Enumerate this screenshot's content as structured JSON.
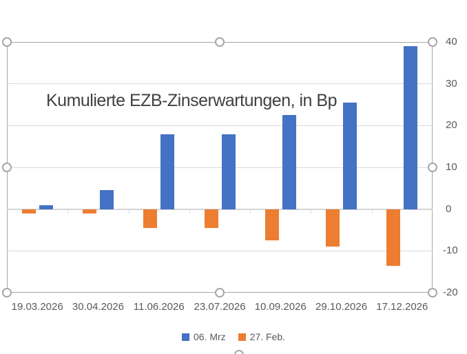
{
  "chart_data": {
    "type": "bar",
    "title": "Kumulierte EZB-Zinserwartungen, in Bp",
    "categories": [
      "19.03.2026",
      "30.04.2026",
      "11.06.2026",
      "23.07.2026",
      "10.09.2026",
      "29.10.2026",
      "17.12.2026"
    ],
    "series": [
      {
        "name": "06. Mrz",
        "color": "#4472C4",
        "values": [
          1,
          4.5,
          18,
          18,
          22.5,
          25.5,
          39
        ]
      },
      {
        "name": "27. Feb.",
        "color": "#ED7D31",
        "values": [
          -1,
          -1,
          -4.5,
          -4.5,
          -7.5,
          -9,
          -13.5
        ]
      }
    ],
    "xlabel": "",
    "ylabel": "",
    "ylim": [
      -20,
      40
    ],
    "yticks": [
      40,
      30,
      20,
      10,
      0,
      -10,
      -20
    ],
    "grid": true,
    "legend_position": "bottom",
    "bar_orientation": "vertical",
    "series_draw_order": "second-series-left-of-first"
  },
  "colors": {
    "grid": "#D9D9D9",
    "zero_axis": "#D4D4D4",
    "frame_border": "#A6A6A6",
    "handle_border": "#A6A6A6",
    "axis_text": "#595959",
    "title_text": "#404040",
    "background": "#FFFFFF"
  },
  "selection": {
    "state": "chart-object-selected",
    "handle_shape": "circle"
  }
}
